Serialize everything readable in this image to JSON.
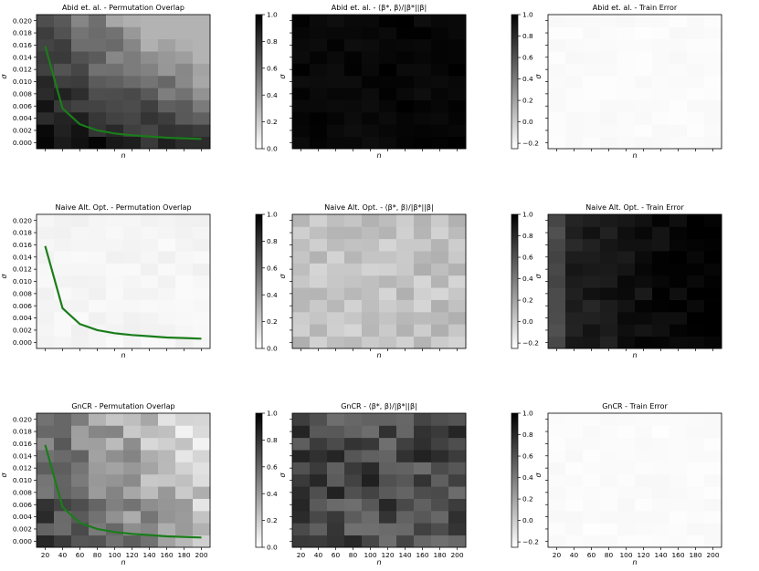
{
  "chart_data": {
    "type": "heatmap",
    "x_tick_labels": [
      "20",
      "40",
      "60",
      "80",
      "100",
      "120",
      "140",
      "160",
      "180",
      "200"
    ],
    "y_tick_labels": [
      "0.000",
      "0.002",
      "0.004",
      "0.006",
      "0.008",
      "0.010",
      "0.012",
      "0.014",
      "0.016",
      "0.018",
      "0.020"
    ],
    "xlabel": "n",
    "ylabel": "σ",
    "colormap": "gray_r",
    "curve_color": "#1a7d1a",
    "curve": {
      "x": [
        20,
        40,
        60,
        80,
        100,
        120,
        140,
        160,
        180,
        200
      ],
      "y": [
        0.0158,
        0.0056,
        0.003,
        0.002,
        0.0015,
        0.0012,
        0.001,
        0.0008,
        0.0007,
        0.0006
      ]
    },
    "colorbars": {
      "overlap": {
        "range": [
          0,
          1
        ],
        "ticks": [
          "0.0",
          "0.2",
          "0.4",
          "0.6",
          "0.8",
          "1.0"
        ],
        "values": [
          0,
          0.2,
          0.4,
          0.6,
          0.8,
          1.0
        ]
      },
      "cosine": {
        "range": [
          -0.25,
          1
        ],
        "ticks": [
          "−0.2",
          "0.0",
          "0.2",
          "0.4",
          "0.6",
          "0.8",
          "1.0"
        ],
        "values": [
          -0.2,
          0,
          0.2,
          0.4,
          0.6,
          0.8,
          1.0
        ]
      },
      "error": {
        "range": [
          0,
          0.92
        ],
        "ticks": [
          "0.2",
          "0.4",
          "0.6",
          "0.8"
        ],
        "values": [
          0.2,
          0.4,
          0.6,
          0.8
        ]
      }
    },
    "panels": [
      {
        "title": "Abid et. al. - Permutation Overlap",
        "row": 0,
        "col": 0,
        "cbar": "overlap",
        "curve": true,
        "show_y_labels": true,
        "show_x_labels": false,
        "pattern": "overlap_abid"
      },
      {
        "title": "Abid et. al. - ⟨β*, β⟩/|β*||β|",
        "row": 0,
        "col": 1,
        "cbar": "cosine",
        "curve": false,
        "show_y_labels": false,
        "show_x_labels": false,
        "pattern": "cos_high"
      },
      {
        "title": "Abid et. al. - Train Error",
        "row": 0,
        "col": 2,
        "cbar": "error",
        "curve": false,
        "show_y_labels": false,
        "show_x_labels": false,
        "pattern": "err_low"
      },
      {
        "title": "Naive Alt. Opt. - Permutation Overlap",
        "row": 1,
        "col": 0,
        "cbar": "overlap",
        "curve": true,
        "show_y_labels": true,
        "show_x_labels": false,
        "pattern": "overlap_low"
      },
      {
        "title": "Naive Alt. Opt. - ⟨β*, β⟩/|β*||β|",
        "row": 1,
        "col": 1,
        "cbar": "cosine",
        "curve": false,
        "show_y_labels": false,
        "show_x_labels": false,
        "pattern": "cos_low"
      },
      {
        "title": "Naive Alt. Opt. - Train Error",
        "row": 1,
        "col": 2,
        "cbar": "error",
        "curve": false,
        "show_y_labels": false,
        "show_x_labels": false,
        "pattern": "err_high"
      },
      {
        "title": "GnCR - Permutation Overlap",
        "row": 2,
        "col": 0,
        "cbar": "overlap",
        "curve": true,
        "show_y_labels": true,
        "show_x_labels": true,
        "pattern": "overlap_gncr"
      },
      {
        "title": "GnCR - ⟨β*, β⟩/|β*||β|",
        "row": 2,
        "col": 1,
        "cbar": "cosine",
        "curve": false,
        "show_y_labels": false,
        "show_x_labels": true,
        "pattern": "cos_mid"
      },
      {
        "title": "GnCR - Train Error",
        "row": 2,
        "col": 2,
        "cbar": "error",
        "curve": false,
        "show_y_labels": false,
        "show_x_labels": true,
        "pattern": "err_low"
      }
    ]
  }
}
